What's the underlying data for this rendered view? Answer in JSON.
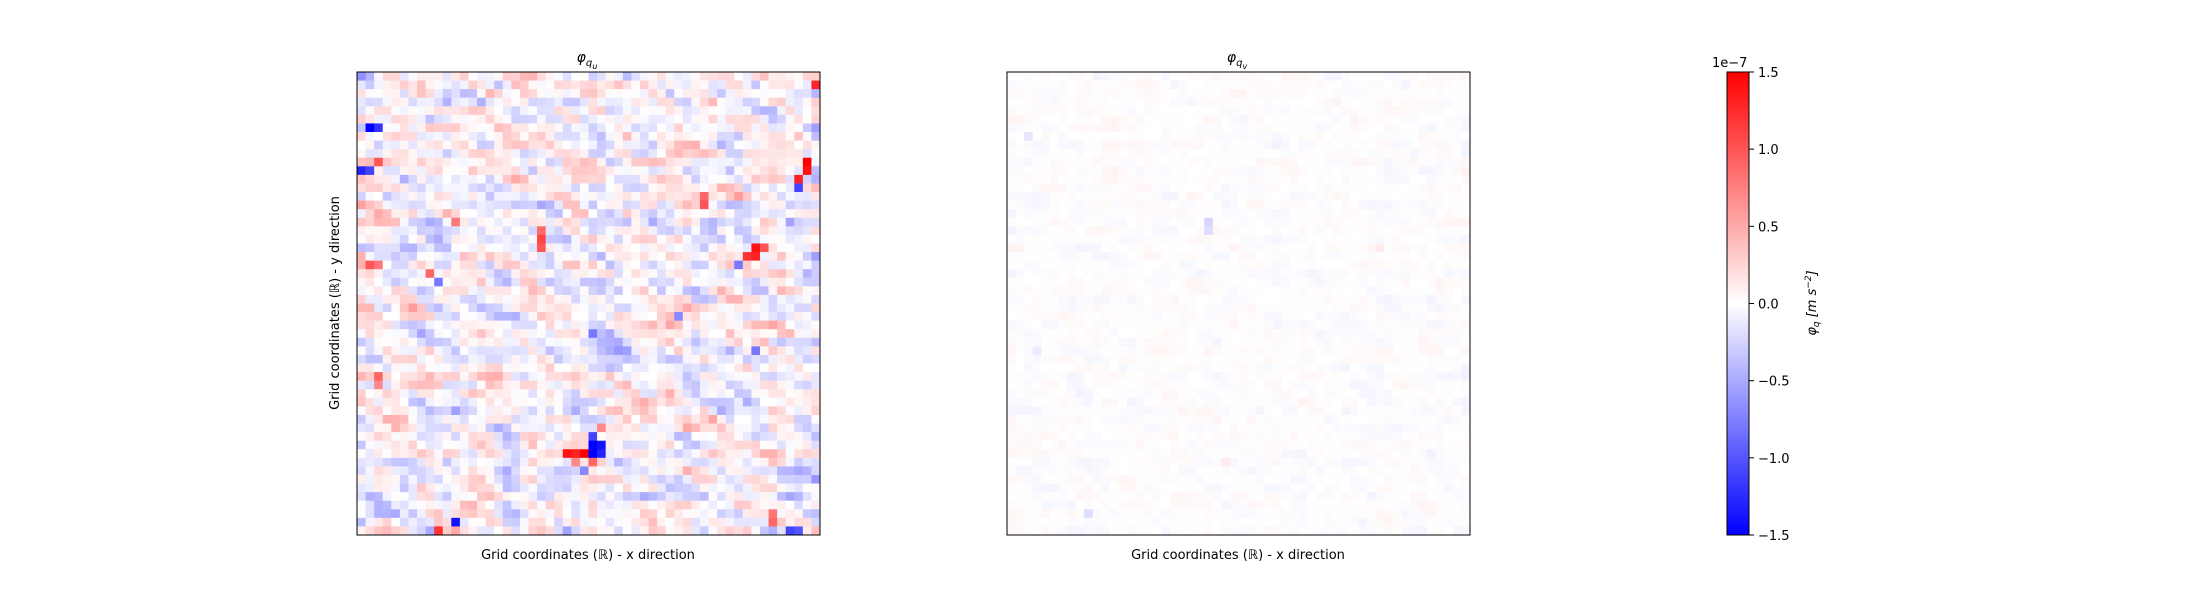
{
  "chart_data": [
    {
      "type": "heatmap",
      "title": "φ",
      "title_subscript": "q",
      "title_subsubscript": "u",
      "xlabel": "Grid coordinates (ℝ) - x direction",
      "ylabel": "Grid coordinates (ℝ) - y direction",
      "grid_size": [
        54,
        54
      ],
      "value_range": [
        -1.5e-07,
        1.5e-07
      ],
      "cmap": "bwr",
      "background_amplitude": 0.3,
      "features": [
        {
          "row": 44,
          "col": 26,
          "value": 1.5e-07
        },
        {
          "row": 44,
          "col": 24,
          "value": 1.4e-07
        },
        {
          "row": 44,
          "col": 25,
          "value": 1.3e-07
        },
        {
          "row": 43,
          "col": 27,
          "value": -1.5e-07
        },
        {
          "row": 44,
          "col": 27,
          "value": -1.5e-07
        },
        {
          "row": 43,
          "col": 28,
          "value": -1.4e-07
        },
        {
          "row": 44,
          "col": 28,
          "value": -1.3e-07
        },
        {
          "row": 42,
          "col": 27,
          "value": -1.1e-07
        },
        {
          "row": 45,
          "col": 27,
          "value": 9e-08
        },
        {
          "row": 6,
          "col": 1,
          "value": -1.5e-07
        },
        {
          "row": 6,
          "col": 2,
          "value": -1.2e-07
        },
        {
          "row": 11,
          "col": 0,
          "value": -1.3e-07
        },
        {
          "row": 11,
          "col": 1,
          "value": -1.1e-07
        },
        {
          "row": 10,
          "col": 2,
          "value": 1e-07
        },
        {
          "row": 10,
          "col": 52,
          "value": 1.5e-07
        },
        {
          "row": 11,
          "col": 52,
          "value": 1.4e-07
        },
        {
          "row": 12,
          "col": 51,
          "value": 1.3e-07
        },
        {
          "row": 13,
          "col": 51,
          "value": -1.1e-07
        },
        {
          "row": 1,
          "col": 53,
          "value": 1.3e-07
        },
        {
          "row": 20,
          "col": 46,
          "value": 1.4e-07
        },
        {
          "row": 21,
          "col": 46,
          "value": 1.3e-07
        },
        {
          "row": 21,
          "col": 45,
          "value": 1.2e-07
        },
        {
          "row": 20,
          "col": 47,
          "value": 1e-07
        },
        {
          "row": 22,
          "col": 44,
          "value": -8e-08
        },
        {
          "row": 19,
          "col": 21,
          "value": 1.1e-07
        },
        {
          "row": 20,
          "col": 21,
          "value": 1e-07
        },
        {
          "row": 18,
          "col": 21,
          "value": 9e-08
        },
        {
          "row": 15,
          "col": 40,
          "value": 1e-07
        },
        {
          "row": 14,
          "col": 40,
          "value": 9e-08
        },
        {
          "row": 23,
          "col": 8,
          "value": 9e-08
        },
        {
          "row": 24,
          "col": 9,
          "value": -8e-08
        },
        {
          "row": 52,
          "col": 11,
          "value": -1.4e-07
        },
        {
          "row": 53,
          "col": 9,
          "value": 1.2e-07
        },
        {
          "row": 53,
          "col": 50,
          "value": -1.1e-07
        },
        {
          "row": 53,
          "col": 51,
          "value": -1e-07
        },
        {
          "row": 52,
          "col": 48,
          "value": 9e-08
        },
        {
          "row": 51,
          "col": 48,
          "value": 8e-08
        },
        {
          "row": 45,
          "col": 25,
          "value": 7e-08
        },
        {
          "row": 41,
          "col": 28,
          "value": 7e-08
        },
        {
          "row": 46,
          "col": 26,
          "value": -7e-08
        },
        {
          "row": 30,
          "col": 27,
          "value": -8e-08
        },
        {
          "row": 28,
          "col": 37,
          "value": -7e-08
        },
        {
          "row": 32,
          "col": 46,
          "value": -8e-08
        },
        {
          "row": 35,
          "col": 2,
          "value": 9e-08
        },
        {
          "row": 36,
          "col": 2,
          "value": 7e-08
        },
        {
          "row": 22,
          "col": 1,
          "value": 1e-07
        },
        {
          "row": 22,
          "col": 2,
          "value": 8e-08
        },
        {
          "row": 17,
          "col": 11,
          "value": 8e-08
        }
      ]
    },
    {
      "type": "heatmap",
      "title": "φ",
      "title_subscript": "q",
      "title_subsubscript": "v",
      "xlabel": "Grid coordinates (ℝ) - x direction",
      "ylabel": "",
      "grid_size": [
        54,
        54
      ],
      "value_range": [
        -1.5e-07,
        1.5e-07
      ],
      "cmap": "bwr",
      "background_amplitude": 0.04,
      "features": [
        {
          "row": 17,
          "col": 23,
          "value": -2.5e-08
        },
        {
          "row": 18,
          "col": 23,
          "value": -2e-08
        },
        {
          "row": 51,
          "col": 9,
          "value": -2e-08
        },
        {
          "row": 7,
          "col": 2,
          "value": -1.5e-08
        },
        {
          "row": 20,
          "col": 43,
          "value": 1.2e-08
        },
        {
          "row": 45,
          "col": 25,
          "value": 1.2e-08
        },
        {
          "row": 32,
          "col": 3,
          "value": -1.2e-08
        }
      ]
    }
  ],
  "colorbar": {
    "label": "φ",
    "label_subscript": "q",
    "label_units": "[m s",
    "label_units_exp": "−2",
    "label_units_close": "]",
    "offset_text": "1e−7",
    "ticks": [
      "1.5",
      "1.0",
      "0.5",
      "0.0",
      "−0.5",
      "−1.0",
      "−1.5"
    ],
    "tick_values": [
      1.5,
      1.0,
      0.5,
      0.0,
      -0.5,
      -1.0,
      -1.5
    ],
    "range": [
      -1.5,
      1.5
    ],
    "cmap": "bwr"
  }
}
